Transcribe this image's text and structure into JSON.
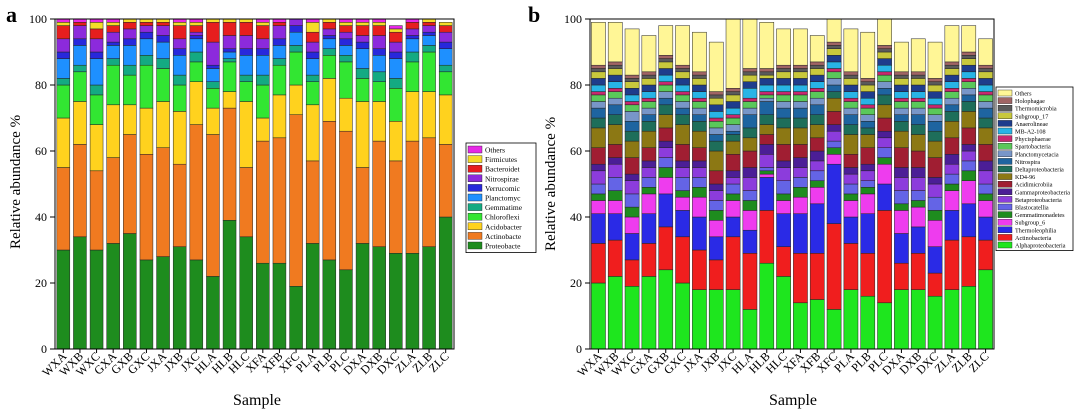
{
  "panels": [
    {
      "panel_label": "a",
      "type": "bar",
      "stacked": true,
      "title": "",
      "xlabel": "Sample",
      "ylabel": "Relative abundance %",
      "ylim": [
        0,
        100
      ],
      "yticks": [
        0,
        20,
        40,
        60,
        80,
        100
      ],
      "legend_position": "right",
      "categories": [
        "WXA",
        "WXB",
        "WXC",
        "GXA",
        "GXB",
        "GXC",
        "JXA",
        "JXB",
        "JXC",
        "HLA",
        "HLB",
        "HLC",
        "XFA",
        "XFB",
        "XFC",
        "PLA",
        "PLB",
        "PLC",
        "DXA",
        "DXB",
        "DXC",
        "ZLA",
        "ZLB",
        "ZLC"
      ],
      "series": [
        {
          "name": "Proteobacte",
          "color": "#1e8c1e",
          "values": [
            30,
            34,
            30,
            32,
            35,
            27,
            28,
            31,
            27,
            22,
            39,
            34,
            26,
            26,
            19,
            32,
            27,
            24,
            32,
            31,
            29,
            29,
            31,
            40
          ]
        },
        {
          "name": "Actinobacte",
          "color": "#f07a20",
          "values": [
            25,
            28,
            24,
            26,
            30,
            32,
            33,
            25,
            41,
            43,
            34,
            21,
            37,
            38,
            52,
            25,
            42,
            42,
            23,
            32,
            28,
            34,
            33,
            22
          ]
        },
        {
          "name": "Acidobacter",
          "color": "#ffd21e",
          "values": [
            15,
            13,
            14,
            16,
            9,
            14,
            14,
            16,
            13,
            8,
            5,
            20,
            7,
            13,
            9,
            17,
            13,
            10,
            20,
            12,
            12,
            15,
            14,
            15
          ]
        },
        {
          "name": "Chloroflexi",
          "color": "#32e632",
          "values": [
            10,
            9,
            9,
            12,
            9,
            13,
            10,
            8,
            6,
            6,
            9,
            6,
            10,
            9,
            10,
            7,
            7,
            11,
            7,
            6,
            10,
            9,
            12,
            7
          ]
        },
        {
          "name": "Gemmatime",
          "color": "#14aa82",
          "values": [
            2,
            2,
            3,
            2,
            3,
            3,
            3,
            3,
            3,
            2,
            1,
            2,
            3,
            2,
            2,
            2,
            2,
            2,
            3,
            3,
            3,
            3,
            2,
            2
          ]
        },
        {
          "name": "Planctomyc",
          "color": "#1e90ff",
          "values": [
            6,
            6,
            8,
            4,
            6,
            5,
            5,
            6,
            4,
            4,
            2,
            6,
            6,
            4,
            4,
            5,
            3,
            3,
            6,
            5,
            6,
            4,
            3,
            5
          ]
        },
        {
          "name": "Verrucomic",
          "color": "#2828dc",
          "values": [
            2,
            2,
            2,
            1,
            2,
            2,
            2,
            2,
            1,
            1,
            1,
            2,
            2,
            2,
            2,
            2,
            1,
            2,
            2,
            2,
            2,
            1,
            1,
            2
          ]
        },
        {
          "name": "Nitrospirae",
          "color": "#8c2adc",
          "values": [
            4,
            4,
            4,
            3,
            3,
            2,
            3,
            3,
            1,
            7,
            4,
            4,
            3,
            4,
            2,
            3,
            2,
            2,
            2,
            4,
            3,
            2,
            2,
            3
          ]
        },
        {
          "name": "Bacteroidet",
          "color": "#e61e1e",
          "values": [
            4,
            1,
            3,
            2,
            2,
            1,
            1,
            4,
            2,
            6,
            4,
            4,
            4,
            1,
            1,
            3,
            2,
            2,
            3,
            3,
            3,
            2,
            1,
            2
          ]
        },
        {
          "name": "Firmicutes",
          "color": "#f5dc28",
          "values": [
            1,
            0,
            2,
            1,
            1,
            1,
            1,
            1,
            1,
            1,
            1,
            1,
            1,
            0,
            0,
            3,
            1,
            1,
            1,
            1,
            1,
            0,
            1,
            1
          ]
        },
        {
          "name": "Others",
          "color": "#e628e6",
          "values": [
            1,
            1,
            1,
            1,
            0,
            0,
            0,
            1,
            1,
            0,
            0,
            0,
            1,
            1,
            1,
            1,
            0,
            1,
            1,
            1,
            1,
            1,
            0,
            0
          ]
        }
      ]
    },
    {
      "panel_label": "b",
      "type": "bar",
      "stacked": true,
      "title": "",
      "xlabel": "Sample",
      "ylabel": "Relative abundance %",
      "ylim": [
        0,
        100
      ],
      "yticks": [
        0,
        20,
        40,
        60,
        80,
        100
      ],
      "legend_position": "right",
      "categories": [
        "WXA",
        "WXB",
        "WXC",
        "GXA",
        "GXB",
        "GXC",
        "JXA",
        "JXB",
        "JXC",
        "HLA",
        "HLB",
        "HLC",
        "XFA",
        "XFB",
        "XFC",
        "PLA",
        "PLB",
        "PLC",
        "DXA",
        "DXB",
        "DXC",
        "ZLA",
        "ZLB",
        "ZLC"
      ],
      "series": [
        {
          "name": "Alphaproteobacteria",
          "color": "#1ee61e",
          "values": [
            20,
            22,
            19,
            22,
            24,
            20,
            18,
            18,
            18,
            12,
            26,
            22,
            14,
            15,
            12,
            18,
            16,
            14,
            18,
            18,
            16,
            18,
            19,
            24
          ]
        },
        {
          "name": "Actinobacteria",
          "color": "#f01e1e",
          "values": [
            12,
            11,
            8,
            10,
            13,
            14,
            12,
            9,
            16,
            17,
            16,
            9,
            15,
            14,
            26,
            14,
            13,
            28,
            8,
            11,
            7,
            15,
            15,
            9
          ]
        },
        {
          "name": "Thermoleophilia",
          "color": "#2a2ae6",
          "values": [
            9,
            8,
            8,
            9,
            10,
            8,
            10,
            7,
            6,
            7,
            10,
            10,
            12,
            15,
            18,
            8,
            12,
            8,
            9,
            8,
            8,
            9,
            10,
            7
          ]
        },
        {
          "name": "Subgroup_6",
          "color": "#ee3cee",
          "values": [
            4,
            4,
            5,
            6,
            5,
            4,
            6,
            5,
            5,
            6,
            1,
            4,
            5,
            5,
            3,
            5,
            6,
            6,
            7,
            6,
            8,
            6,
            7,
            5
          ]
        },
        {
          "name": "Gemmatimonadetes",
          "color": "#1e8c1e",
          "values": [
            2,
            3,
            3,
            2,
            3,
            2,
            3,
            3,
            2,
            3,
            1,
            2,
            3,
            2,
            2,
            2,
            2,
            2,
            2,
            2,
            3,
            2,
            3,
            2
          ]
        },
        {
          "name": "Blastocatellia",
          "color": "#6464e6",
          "values": [
            3,
            4,
            4,
            3,
            3,
            4,
            3,
            3,
            3,
            3,
            1,
            4,
            3,
            3,
            2,
            3,
            2,
            3,
            4,
            3,
            4,
            3,
            3,
            3
          ]
        },
        {
          "name": "Betaproteobacteria",
          "color": "#8c3cdc",
          "values": [
            4,
            4,
            4,
            3,
            3,
            3,
            3,
            3,
            2,
            4,
            4,
            4,
            3,
            3,
            3,
            3,
            3,
            3,
            4,
            4,
            4,
            3,
            3,
            4
          ]
        },
        {
          "name": "Gammaproteobacteria",
          "color": "#4b1e96",
          "values": [
            2,
            2,
            2,
            2,
            2,
            2,
            2,
            2,
            2,
            3,
            3,
            2,
            3,
            3,
            2,
            2,
            2,
            2,
            3,
            3,
            2,
            3,
            2,
            3
          ]
        },
        {
          "name": "Acidimicrobiia",
          "color": "#a01e32",
          "values": [
            5,
            4,
            5,
            4,
            4,
            5,
            4,
            4,
            5,
            5,
            3,
            5,
            4,
            4,
            4,
            4,
            5,
            4,
            6,
            5,
            6,
            5,
            5,
            5
          ]
        },
        {
          "name": "KD4-96",
          "color": "#8c7814",
          "values": [
            6,
            6,
            5,
            5,
            4,
            6,
            5,
            6,
            4,
            4,
            3,
            5,
            5,
            4,
            4,
            6,
            4,
            4,
            5,
            5,
            5,
            5,
            5,
            5
          ]
        },
        {
          "name": "Deltaproteobacteria",
          "color": "#1e6e5a",
          "values": [
            3,
            3,
            3,
            3,
            3,
            3,
            3,
            3,
            2,
            3,
            3,
            3,
            3,
            3,
            2,
            3,
            2,
            3,
            3,
            3,
            3,
            3,
            3,
            3
          ]
        },
        {
          "name": "Nitrospira",
          "color": "#1e64a0",
          "values": [
            3,
            3,
            3,
            2,
            2,
            2,
            2,
            2,
            1,
            4,
            4,
            3,
            3,
            3,
            2,
            3,
            2,
            2,
            2,
            3,
            3,
            2,
            2,
            3
          ]
        },
        {
          "name": "Planctomycetacia",
          "color": "#7896c8",
          "values": [
            2,
            2,
            3,
            2,
            2,
            2,
            2,
            2,
            2,
            2,
            1,
            2,
            2,
            2,
            2,
            2,
            2,
            2,
            2,
            2,
            2,
            2,
            2,
            2
          ]
        },
        {
          "name": "Spartobacteria",
          "color": "#5ac85a",
          "values": [
            2,
            2,
            2,
            2,
            2,
            2,
            2,
            2,
            2,
            2,
            1,
            2,
            2,
            2,
            2,
            2,
            2,
            2,
            2,
            2,
            2,
            2,
            2,
            2
          ]
        },
        {
          "name": "Phycisphaerae",
          "color": "#c8286e",
          "values": [
            1,
            1,
            1,
            1,
            1,
            1,
            1,
            1,
            1,
            1,
            1,
            1,
            1,
            1,
            1,
            1,
            1,
            1,
            1,
            1,
            1,
            1,
            1,
            1
          ]
        },
        {
          "name": "MB-A2-108",
          "color": "#28b4e6",
          "values": [
            2,
            2,
            2,
            2,
            2,
            2,
            2,
            2,
            2,
            3,
            2,
            2,
            2,
            2,
            2,
            2,
            2,
            2,
            2,
            2,
            2,
            2,
            2,
            2
          ]
        },
        {
          "name": "Anaerolineae",
          "color": "#1e3c8c",
          "values": [
            2,
            2,
            2,
            2,
            2,
            2,
            2,
            2,
            2,
            2,
            2,
            2,
            2,
            2,
            2,
            2,
            2,
            2,
            2,
            2,
            2,
            2,
            2,
            2
          ]
        },
        {
          "name": "Subgroup_17",
          "color": "#c8c83c",
          "values": [
            2,
            2,
            2,
            2,
            2,
            2,
            2,
            2,
            2,
            2,
            1,
            2,
            2,
            2,
            2,
            2,
            2,
            2,
            2,
            2,
            2,
            2,
            2,
            2
          ]
        },
        {
          "name": "Thermomicrobia",
          "color": "#5a5a5a",
          "values": [
            1,
            1,
            1,
            1,
            1,
            1,
            1,
            1,
            1,
            1,
            1,
            1,
            1,
            1,
            1,
            1,
            1,
            1,
            1,
            1,
            1,
            1,
            1,
            1
          ]
        },
        {
          "name": "Holophagae",
          "color": "#a06464",
          "values": [
            1,
            1,
            1,
            1,
            1,
            1,
            1,
            1,
            1,
            1,
            1,
            1,
            1,
            1,
            1,
            1,
            1,
            1,
            1,
            1,
            1,
            1,
            1,
            1
          ]
        },
        {
          "name": "Others",
          "color": "#fff696",
          "values": [
            13,
            12,
            14,
            11,
            9,
            12,
            12,
            15,
            21,
            15,
            14,
            11,
            11,
            8,
            7,
            13,
            14,
            8,
            9,
            10,
            11,
            11,
            8,
            8
          ]
        }
      ]
    }
  ]
}
